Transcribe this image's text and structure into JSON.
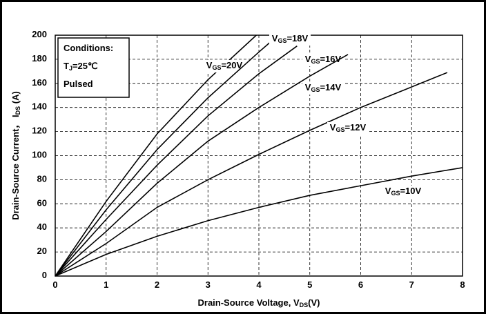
{
  "chart_data": {
    "type": "line",
    "xlabel": "Drain-Source Voltage, VDS(V)",
    "ylabel": "Drain-Source Current， IDS (A)",
    "conditions": [
      "Conditions:",
      "TJ=25℃",
      "Pulsed"
    ],
    "xlim": [
      0,
      8
    ],
    "xticks": [
      0,
      1,
      2,
      3,
      4,
      5,
      6,
      7,
      8
    ],
    "ylim": [
      0,
      200
    ],
    "yticks": [
      0,
      20,
      40,
      60,
      80,
      100,
      120,
      140,
      160,
      180,
      200
    ],
    "grid": true,
    "series": [
      {
        "name": "VGS=20V",
        "color": "#000000",
        "x": [
          0,
          1,
          2,
          3,
          3.95
        ],
        "values": [
          0,
          62,
          118,
          163,
          200
        ]
      },
      {
        "name": "VGS=18V",
        "color": "#000000",
        "x": [
          0,
          1,
          2,
          3,
          4,
          4.3
        ],
        "values": [
          0,
          55,
          105,
          148,
          186,
          197
        ]
      },
      {
        "name": "VGS=16V",
        "color": "#000000",
        "x": [
          0,
          1,
          2,
          3,
          4,
          4.75
        ],
        "values": [
          0,
          47,
          92,
          133,
          168,
          191
        ]
      },
      {
        "name": "VGS=14V",
        "color": "#000000",
        "x": [
          0,
          1,
          2,
          3,
          4,
          5,
          5.75
        ],
        "values": [
          0,
          37,
          77,
          112,
          140,
          166,
          184
        ]
      },
      {
        "name": "VGS=12V",
        "color": "#000000",
        "x": [
          0,
          1,
          2,
          3,
          4,
          5,
          6,
          7,
          7.7
        ],
        "values": [
          0,
          27,
          57,
          80,
          101,
          121,
          140,
          157,
          169
        ]
      },
      {
        "name": "VGS=10V",
        "color": "#000000",
        "x": [
          0,
          1,
          2,
          3,
          4,
          5,
          6,
          7,
          8
        ],
        "values": [
          0,
          18,
          33,
          46,
          57,
          67,
          75,
          83,
          90
        ]
      }
    ]
  }
}
